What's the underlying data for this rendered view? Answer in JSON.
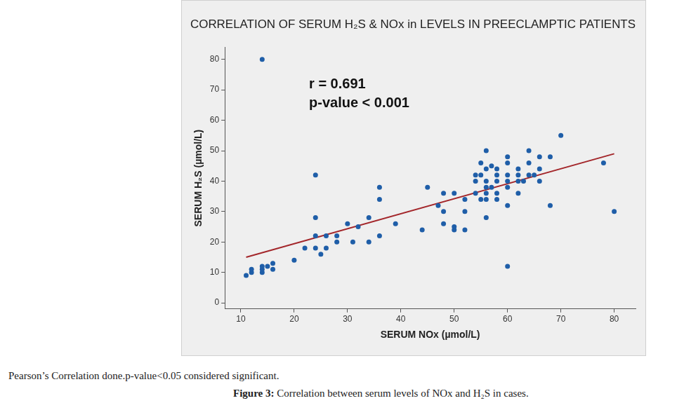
{
  "chart_data": {
    "type": "scatter",
    "title": "CORRELATION OF SERUM H₂S & NOx in LEVELS IN PREECLAMPTIC PATIENTS",
    "x_label": "SERUM NOx (µmol/L)",
    "y_label": "SERUM H₂S (µmol/L)",
    "annotations": [
      "r = 0.691",
      "p-value < 0.001"
    ],
    "series": [
      {
        "type": "scatter",
        "color": "#1f5ea8",
        "marker": "circle",
        "x": [
          14,
          11,
          12,
          12,
          14,
          14,
          14,
          15,
          16,
          16,
          20,
          22,
          24,
          24,
          24,
          24,
          25,
          26,
          26,
          28,
          28,
          30,
          31,
          32,
          34,
          34,
          36,
          36,
          36,
          39,
          44,
          45,
          47,
          48,
          48,
          48,
          50,
          50,
          50,
          52,
          52,
          52,
          54,
          54,
          54,
          55,
          55,
          55,
          56,
          56,
          56,
          56,
          56,
          56,
          56,
          57,
          57,
          58,
          58,
          58,
          58,
          58,
          60,
          60,
          60,
          60,
          60,
          60,
          60,
          62,
          62,
          62,
          62,
          63,
          64,
          64,
          64,
          65,
          66,
          66,
          66,
          68,
          68,
          70,
          78,
          80
        ],
        "values": [
          80,
          9,
          10,
          11,
          10,
          11,
          12,
          12,
          11,
          13,
          14,
          18,
          18,
          22,
          28,
          42,
          16,
          18,
          22,
          20,
          22,
          26,
          20,
          25,
          20,
          28,
          22,
          34,
          38,
          26,
          24,
          38,
          32,
          26,
          30,
          36,
          24,
          25,
          36,
          24,
          30,
          34,
          36,
          40,
          42,
          34,
          42,
          46,
          36,
          38,
          40,
          44,
          50,
          28,
          34,
          38,
          45,
          34,
          36,
          40,
          42,
          44,
          12,
          32,
          38,
          40,
          42,
          46,
          48,
          36,
          40,
          42,
          44,
          40,
          42,
          46,
          50,
          42,
          40,
          44,
          48,
          32,
          48,
          55,
          46,
          30
        ]
      },
      {
        "type": "line",
        "color": "#a3262a",
        "line_style": "solid",
        "x": [
          11,
          80
        ],
        "values": [
          15,
          49
        ]
      }
    ],
    "xlim": [
      7,
      84
    ],
    "ylim": [
      -2,
      84
    ],
    "xticks": [
      10,
      20,
      30,
      40,
      50,
      60,
      70,
      80
    ],
    "yticks": [
      0,
      10,
      20,
      30,
      40,
      50,
      60,
      70,
      80
    ],
    "grid": false,
    "legend": "none"
  },
  "footnote": "Pearson’s Correlation done.p-value<0.05 considered significant.",
  "caption_label": "Figure 3:",
  "caption_text": "Correlation between serum levels of NOx and H₂S in cases."
}
